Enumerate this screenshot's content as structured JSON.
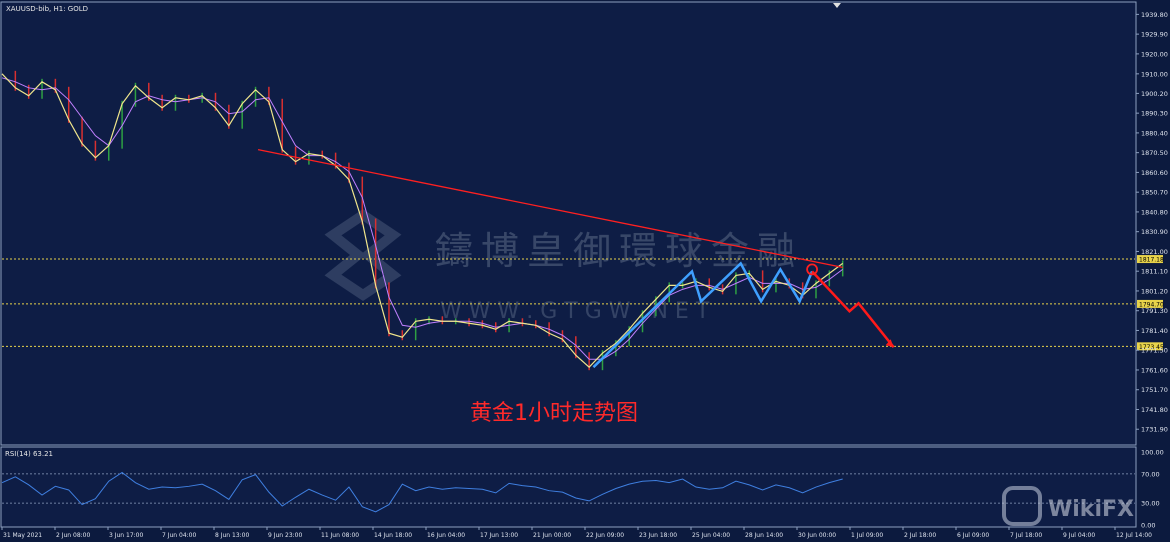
{
  "chart_data": [
    {
      "type": "line",
      "title": "XAUUSD-bib, H1:  GOLD",
      "annotation": "黄金1小时走势图",
      "watermark_cn": "鑄博皇御環球金融",
      "watermark_en": "W W W . G T G W . N E T",
      "y_axis_ticks": [
        "1939.80",
        "1929.90",
        "1920.00",
        "1910.00",
        "1900.20",
        "1890.30",
        "1880.40",
        "1870.50",
        "1860.60",
        "1850.70",
        "1840.80",
        "1830.90",
        "1821.00",
        "1811.10",
        "1801.20",
        "1791.30",
        "1781.40",
        "1771.50",
        "1761.60",
        "1751.70",
        "1741.80",
        "1731.90"
      ],
      "x_axis_ticks": [
        "31 May 2021",
        "2 Jun 08:00",
        "3 Jun 17:00",
        "7 Jun 04:00",
        "8 Jun 13:00",
        "9 Jun 23:00",
        "11 Jun 08:00",
        "14 Jun 18:00",
        "16 Jun 04:00",
        "17 Jun 13:00",
        "21 Jun 00:00",
        "22 Jun 09:00",
        "23 Jun 18:00",
        "25 Jun 04:00",
        "28 Jun 14:00",
        "30 Jun 00:00",
        "1 Jul 09:00",
        "2 Jul 18:00",
        "6 Jul 09:00",
        "7 Jul 18:00",
        "9 Jul 04:00",
        "12 Jul 14:00"
      ],
      "ylim": [
        1725,
        1945
      ],
      "price_labels": [
        "1817.18",
        "1794.70",
        "1773.45"
      ],
      "levels": [
        1817.18,
        1794.7,
        1773.45
      ],
      "level_color": "#e8d34a",
      "price_series": [
        1910,
        1903,
        1899,
        1906,
        1902,
        1887,
        1875,
        1868,
        1874,
        1895,
        1904,
        1898,
        1893,
        1898,
        1897,
        1899,
        1893,
        1884,
        1895,
        1902,
        1896,
        1872,
        1866,
        1870,
        1869,
        1864,
        1857,
        1836,
        1804,
        1780,
        1778,
        1786,
        1787,
        1786,
        1786,
        1785,
        1784,
        1782,
        1786,
        1785,
        1784,
        1780,
        1777,
        1769,
        1763,
        1770,
        1775,
        1782,
        1790,
        1797,
        1804,
        1804,
        1806,
        1803,
        1801,
        1809,
        1810,
        1802,
        1806,
        1804,
        1799,
        1805,
        1810,
        1815
      ],
      "ma_series": [
        1908,
        1906,
        1903,
        1902,
        1903,
        1897,
        1888,
        1879,
        1874,
        1884,
        1896,
        1899,
        1897,
        1896,
        1897,
        1898,
        1896,
        1890,
        1891,
        1897,
        1898,
        1886,
        1874,
        1869,
        1869,
        1866,
        1861,
        1848,
        1824,
        1798,
        1784,
        1783,
        1785,
        1786,
        1786,
        1786,
        1785,
        1783,
        1784,
        1785,
        1784,
        1782,
        1779,
        1774,
        1767,
        1767,
        1771,
        1777,
        1785,
        1792,
        1799,
        1802,
        1804,
        1804,
        1802,
        1805,
        1808,
        1805,
        1805,
        1805,
        1802,
        1803,
        1807,
        1812
      ],
      "price_color": "#f0e68c",
      "ma_color": "#c080ff",
      "trendline": {
        "from": [
          0.226,
          1872
        ],
        "to": [
          0.742,
          1813
        ],
        "color": "#ff2020"
      },
      "zigzag_blue": [
        [
          0.522,
          1763
        ],
        [
          0.609,
          1811
        ],
        [
          0.617,
          1796
        ],
        [
          0.652,
          1815
        ],
        [
          0.67,
          1796
        ],
        [
          0.687,
          1812
        ],
        [
          0.704,
          1796
        ],
        [
          0.715,
          1811
        ]
      ],
      "zigzag_red": [
        [
          0.715,
          1811
        ],
        [
          0.748,
          1791
        ],
        [
          0.756,
          1795
        ],
        [
          0.787,
          1773
        ]
      ],
      "circle_at": [
        0.715,
        1812
      ],
      "rsi": {
        "label": "RSI(14) 63.21",
        "ticks": [
          "100.00",
          "70.00",
          "30.00",
          "0.00"
        ],
        "levels": [
          70,
          30
        ],
        "ylim": [
          0,
          100
        ],
        "values": [
          58,
          66,
          55,
          41,
          53,
          48,
          28,
          36,
          60,
          72,
          58,
          49,
          52,
          51,
          53,
          56,
          47,
          35,
          62,
          69,
          45,
          26,
          38,
          49,
          41,
          34,
          52,
          25,
          18,
          28,
          56,
          47,
          52,
          49,
          51,
          50,
          49,
          44,
          57,
          54,
          52,
          47,
          45,
          37,
          33,
          42,
          50,
          56,
          60,
          61,
          58,
          63,
          52,
          49,
          51,
          60,
          55,
          48,
          55,
          51,
          44,
          52,
          58,
          63
        ],
        "color": "#3f7fe0"
      }
    }
  ],
  "wikifx": {
    "text": "WikiFX"
  }
}
